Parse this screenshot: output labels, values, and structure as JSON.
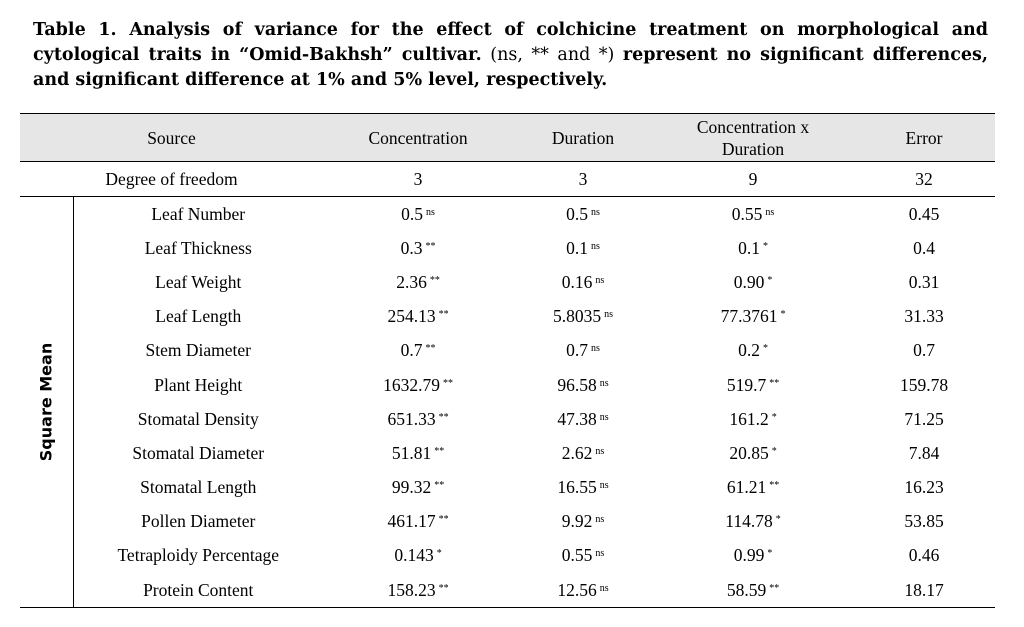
{
  "caption": {
    "bold": "Table 1. Analysis of variance for the effect of colchicine treatment on morphological and cytological traits in “Omid-Bakhsh” cultivar.",
    "plain_open": "(ns, ** and *)",
    "bold_tail": "represent no significant differences, and  significant difference at 1% and 5% level, respectively."
  },
  "header": {
    "source": "Source",
    "concentration": "Concentration",
    "duration": "Duration",
    "interaction": "Concentration x Duration",
    "error": "Error"
  },
  "df_row": {
    "label": "Degree of freedom",
    "values": [
      "3",
      "3",
      "9",
      "32"
    ]
  },
  "side_label": "Square Mean",
  "rows": [
    {
      "trait": "Leaf Number",
      "cells": [
        {
          "v": "0.5",
          "s": "ns"
        },
        {
          "v": "0.5",
          "s": "ns"
        },
        {
          "v": "0.55",
          "s": "ns"
        },
        {
          "v": "0.45",
          "s": ""
        }
      ]
    },
    {
      "trait": "Leaf Thickness",
      "cells": [
        {
          "v": "0.3",
          "s": "**"
        },
        {
          "v": "0.1",
          "s": "ns"
        },
        {
          "v": "0.1",
          "s": "*"
        },
        {
          "v": "0.4",
          "s": ""
        }
      ]
    },
    {
      "trait": "Leaf Weight",
      "cells": [
        {
          "v": "2.36",
          "s": "**"
        },
        {
          "v": "0.16",
          "s": "ns"
        },
        {
          "v": "0.90",
          "s": "*"
        },
        {
          "v": "0.31",
          "s": ""
        }
      ]
    },
    {
      "trait": "Leaf Length",
      "cells": [
        {
          "v": "254.13",
          "s": "**"
        },
        {
          "v": "5.8035",
          "s": "ns"
        },
        {
          "v": "77.3761",
          "s": "*"
        },
        {
          "v": "31.33",
          "s": ""
        }
      ]
    },
    {
      "trait": "Stem Diameter",
      "cells": [
        {
          "v": "0.7",
          "s": "**"
        },
        {
          "v": "0.7",
          "s": "ns"
        },
        {
          "v": "0.2",
          "s": "*"
        },
        {
          "v": "0.7",
          "s": ""
        }
      ]
    },
    {
      "trait": "Plant Height",
      "cells": [
        {
          "v": "1632.79",
          "s": "**"
        },
        {
          "v": "96.58",
          "s": "ns"
        },
        {
          "v": "519.7",
          "s": "**"
        },
        {
          "v": "159.78",
          "s": ""
        }
      ]
    },
    {
      "trait": "Stomatal Density",
      "cells": [
        {
          "v": "651.33",
          "s": "**"
        },
        {
          "v": "47.38",
          "s": "ns"
        },
        {
          "v": "161.2",
          "s": "*"
        },
        {
          "v": "71.25",
          "s": ""
        }
      ]
    },
    {
      "trait": "Stomatal Diameter",
      "cells": [
        {
          "v": "51.81",
          "s": "**"
        },
        {
          "v": "2.62",
          "s": "ns"
        },
        {
          "v": "20.85",
          "s": "*"
        },
        {
          "v": "7.84",
          "s": ""
        }
      ]
    },
    {
      "trait": "Stomatal Length",
      "cells": [
        {
          "v": "99.32",
          "s": "**"
        },
        {
          "v": "16.55",
          "s": "ns"
        },
        {
          "v": "61.21",
          "s": "**"
        },
        {
          "v": "16.23",
          "s": ""
        }
      ]
    },
    {
      "trait": "Pollen Diameter",
      "cells": [
        {
          "v": "461.17",
          "s": "**"
        },
        {
          "v": "9.92",
          "s": "ns"
        },
        {
          "v": "114.78",
          "s": "*"
        },
        {
          "v": "53.85",
          "s": ""
        }
      ]
    },
    {
      "trait": "Tetraploidy Percentage",
      "cells": [
        {
          "v": "0.143",
          "s": "*"
        },
        {
          "v": "0.55",
          "s": "ns"
        },
        {
          "v": "0.99",
          "s": "*"
        },
        {
          "v": "0.46",
          "s": ""
        }
      ]
    },
    {
      "trait": "Protein Content",
      "cells": [
        {
          "v": "158.23",
          "s": "**"
        },
        {
          "v": "12.56",
          "s": "ns"
        },
        {
          "v": "58.59",
          "s": "**"
        },
        {
          "v": "18.17",
          "s": ""
        }
      ]
    }
  ]
}
